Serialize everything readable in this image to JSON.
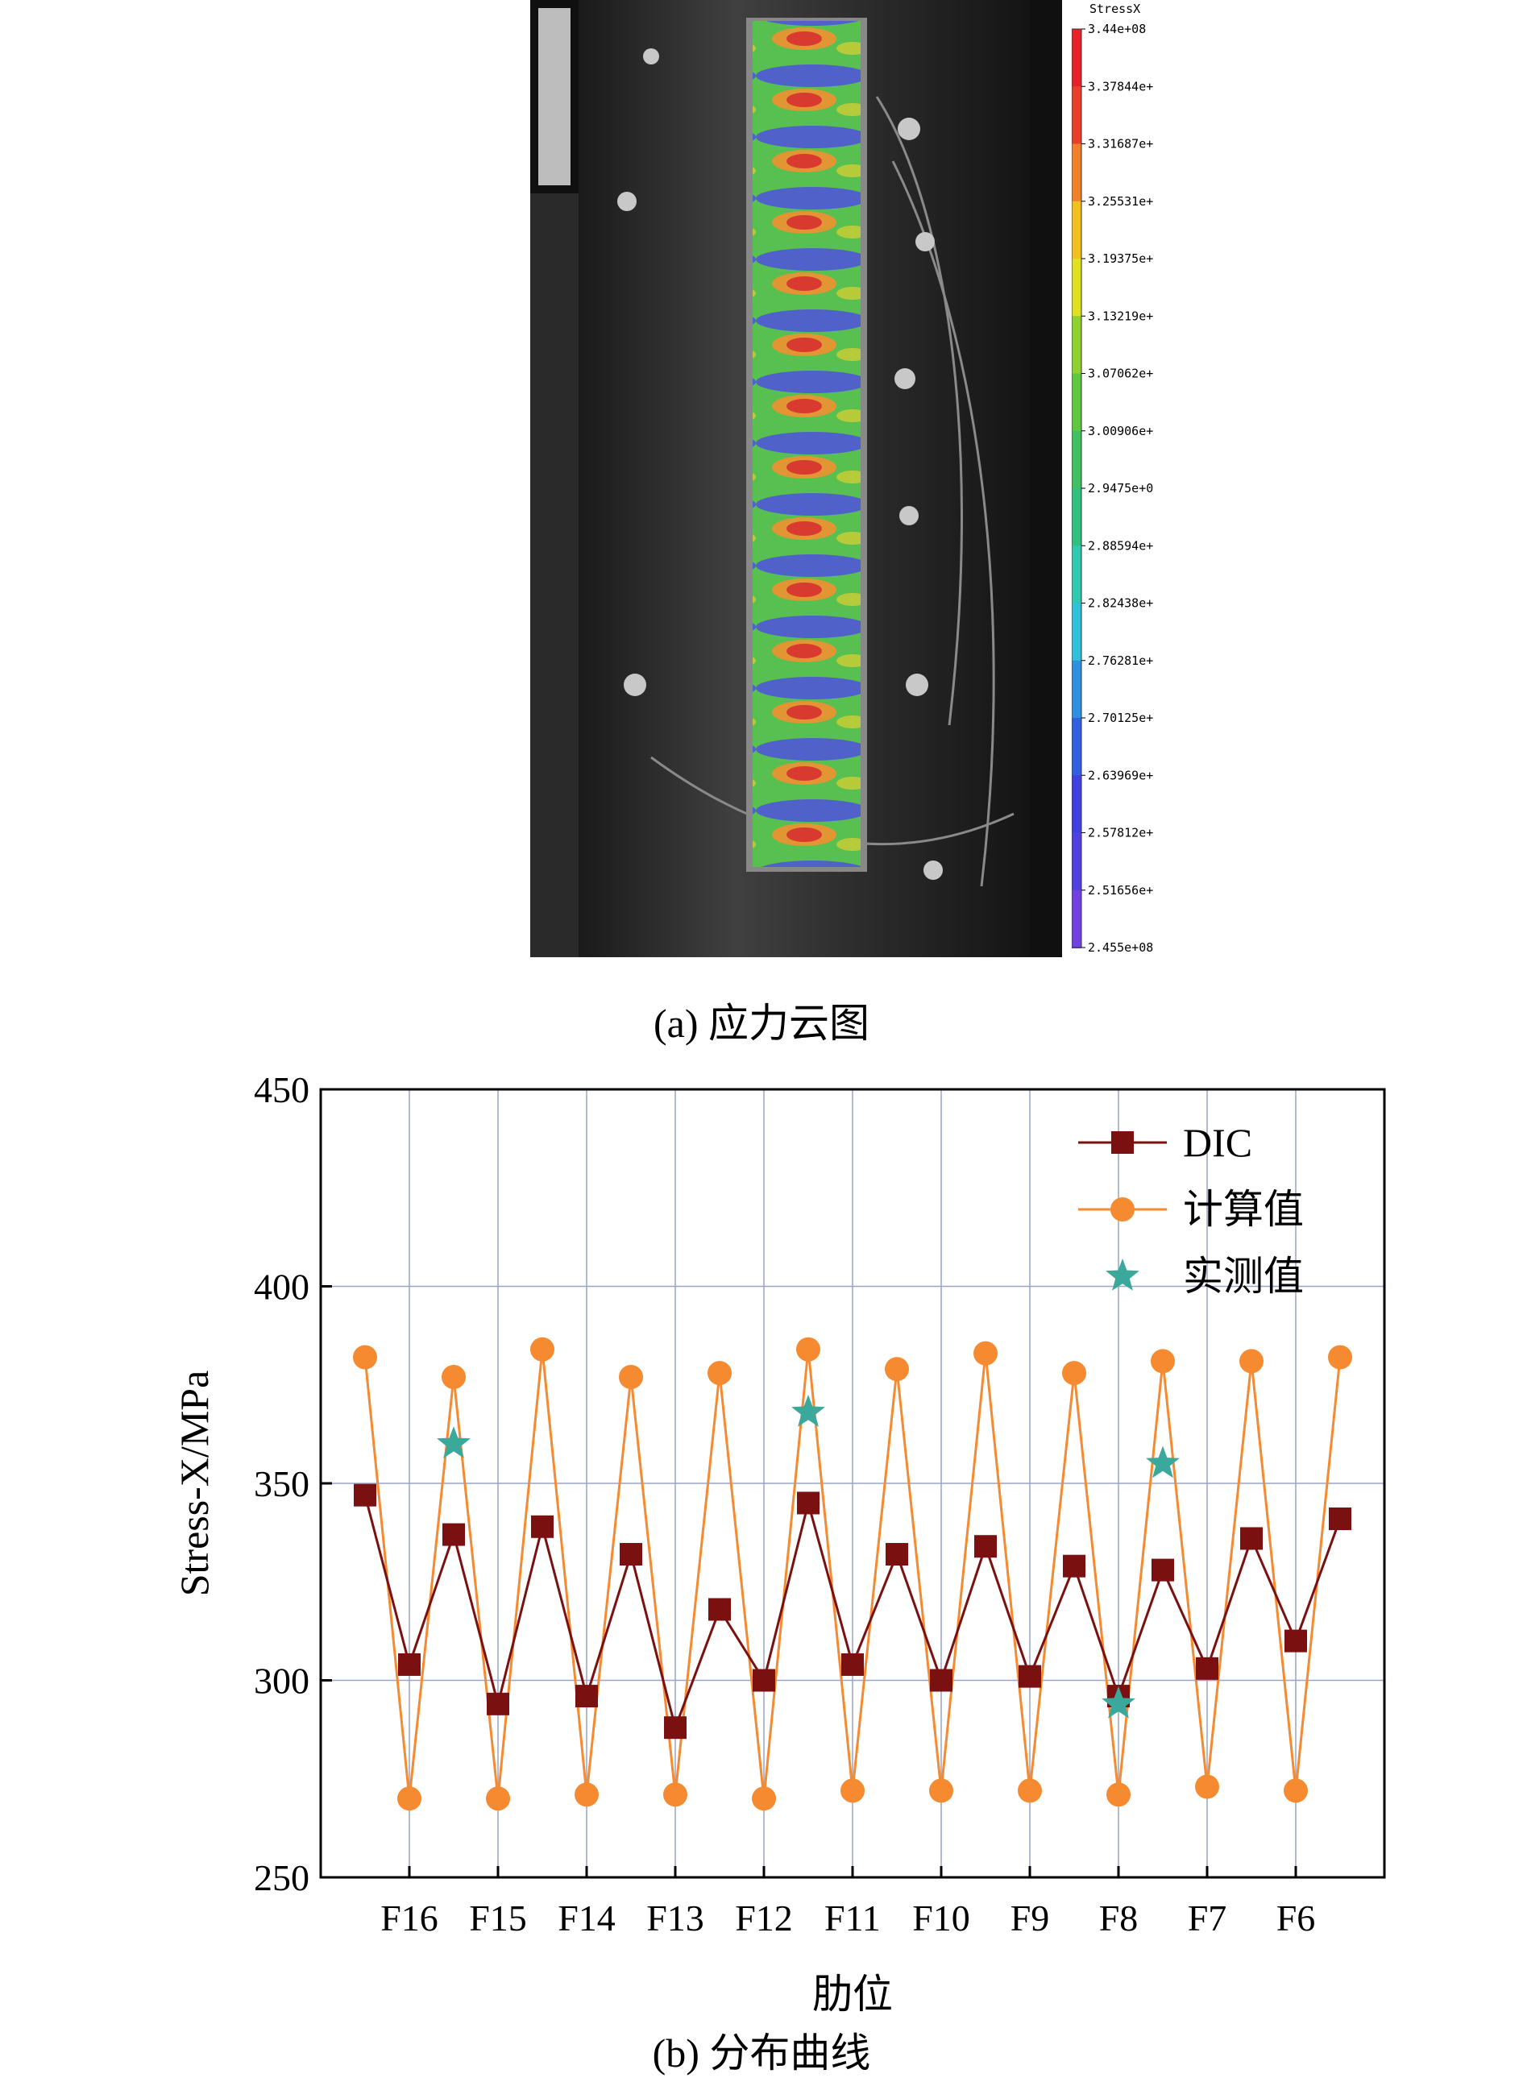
{
  "caption_a": "(a) 应力云图",
  "caption_b": "(b) 分布曲线",
  "colorbar": {
    "title": "StressX",
    "labels": [
      "3.44e+08",
      "3.37844e+",
      "3.31687e+",
      "3.25531e+",
      "3.19375e+",
      "3.13219e+",
      "3.07062e+",
      "3.00906e+",
      "2.9475e+0",
      "2.88594e+",
      "2.82438e+",
      "2.76281e+",
      "2.70125e+",
      "2.63969e+",
      "2.57812e+",
      "2.51656e+",
      "2.455e+08"
    ],
    "colors": [
      "#e8202a",
      "#e8402a",
      "#f0802a",
      "#f0c020",
      "#e0e020",
      "#90d030",
      "#60c840",
      "#40c060",
      "#30c080",
      "#30c8b0",
      "#30c0d8",
      "#3090e0",
      "#3060e0",
      "#4040e0",
      "#5040e0",
      "#7040e0",
      "#a050f0"
    ]
  },
  "chart_data": {
    "type": "line",
    "xlabel": "肋位",
    "ylabel": "Stress-X/MPa",
    "ylim": [
      250,
      450
    ],
    "yticks": [
      250,
      300,
      350,
      400,
      450
    ],
    "xlim": [
      0,
      22
    ],
    "xticks": [
      {
        "x": 2,
        "label": "F16"
      },
      {
        "x": 4,
        "label": "F15"
      },
      {
        "x": 6,
        "label": "F14"
      },
      {
        "x": 8,
        "label": "F13"
      },
      {
        "x": 10,
        "label": "F12"
      },
      {
        "x": 12,
        "label": "F11"
      },
      {
        "x": 14,
        "label": "F10"
      },
      {
        "x": 16,
        "label": "F9"
      },
      {
        "x": 18,
        "label": "F8"
      },
      {
        "x": 20,
        "label": "F7"
      },
      {
        "x": 22,
        "label": "F6"
      }
    ],
    "grid": true,
    "legend": "top-right",
    "series": [
      {
        "name": "DIC",
        "color": "#7a1010",
        "marker": "square",
        "x": [
          1,
          2,
          3,
          4,
          5,
          6,
          7,
          8,
          9,
          10,
          11,
          12,
          13,
          14,
          15,
          16,
          17,
          18,
          19,
          20,
          21,
          22,
          23
        ],
        "y": [
          347,
          304,
          337,
          294,
          339,
          296,
          332,
          288,
          318,
          300,
          345,
          304,
          332,
          300,
          334,
          301,
          329,
          296,
          328,
          303,
          336,
          310,
          341
        ]
      },
      {
        "name": "计算值",
        "color": "#f58a30",
        "marker": "circle",
        "x": [
          1,
          2,
          3,
          4,
          5,
          6,
          7,
          8,
          9,
          10,
          11,
          12,
          13,
          14,
          15,
          16,
          17,
          18,
          19,
          20,
          21,
          22,
          23
        ],
        "y": [
          382,
          270,
          377,
          270,
          384,
          271,
          377,
          271,
          378,
          270,
          384,
          272,
          379,
          272,
          383,
          272,
          378,
          271,
          381,
          273,
          381,
          272,
          382
        ]
      },
      {
        "name": "实测值",
        "color": "#3aa89a",
        "marker": "star",
        "x": [
          3,
          11,
          18,
          19
        ],
        "y": [
          360,
          368,
          294,
          355
        ]
      }
    ]
  }
}
